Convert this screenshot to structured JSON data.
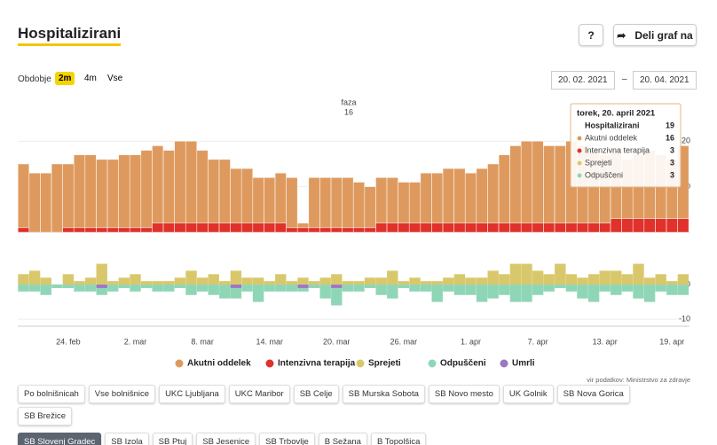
{
  "header": {
    "title": "Hospitalizirani",
    "help": "?",
    "share": "Deli graf na"
  },
  "period": {
    "label": "Obdobje",
    "options": [
      "2m",
      "4m",
      "Vse"
    ]
  },
  "date_range": {
    "from": "20. 02. 2021",
    "separator": "–",
    "to": "20. 04. 2021"
  },
  "chart_data": [
    {
      "type": "stacked-bar",
      "categories": [
        null,
        null,
        null,
        null,
        "24. feb",
        null,
        null,
        null,
        null,
        null,
        "2. mar",
        null,
        null,
        null,
        null,
        null,
        "8. mar",
        null,
        null,
        null,
        null,
        null,
        "14. mar",
        null,
        null,
        null,
        null,
        null,
        "20. mar",
        null,
        null,
        null,
        null,
        null,
        "26. mar",
        null,
        null,
        null,
        null,
        null,
        "1. apr",
        null,
        null,
        null,
        null,
        null,
        "7. apr",
        null,
        null,
        null,
        null,
        null,
        "13. apr",
        null,
        null,
        null,
        null,
        null,
        "19. apr",
        null
      ],
      "series": [
        {
          "name": "Akutni oddelek",
          "color": "#de9a5e",
          "values": [
            14,
            13,
            13,
            15,
            14,
            16,
            16,
            15,
            15,
            16,
            16,
            17,
            17,
            16,
            18,
            18,
            16,
            14,
            14,
            12,
            12,
            10,
            10,
            11,
            11,
            1,
            11,
            11,
            11,
            11,
            10,
            9,
            10,
            10,
            9,
            9,
            11,
            11,
            12,
            12,
            11,
            12,
            13,
            15,
            17,
            18,
            18,
            17,
            17,
            18,
            17,
            16,
            15,
            15,
            13,
            14,
            15,
            14,
            13,
            16
          ]
        },
        {
          "name": "Intenzivna terapija",
          "color": "#e0312b",
          "values": [
            1,
            0,
            0,
            0,
            1,
            1,
            1,
            1,
            1,
            1,
            1,
            1,
            2,
            2,
            2,
            2,
            2,
            2,
            2,
            2,
            2,
            2,
            2,
            2,
            1,
            1,
            1,
            1,
            1,
            1,
            1,
            1,
            2,
            2,
            2,
            2,
            2,
            2,
            2,
            2,
            2,
            2,
            2,
            2,
            2,
            2,
            2,
            2,
            2,
            2,
            2,
            2,
            2,
            3,
            3,
            3,
            3,
            3,
            3,
            3
          ]
        }
      ],
      "ylim": [
        0,
        30
      ],
      "yticks": [
        10,
        20
      ],
      "grid": true,
      "annotation": {
        "text": "faza",
        "phase": 16
      },
      "tooltip": {
        "title": "torek, 20. april 2021",
        "total_label": "Hospitalizirani",
        "total": 19,
        "rows": [
          {
            "label": "Akutni oddelek",
            "value": 16,
            "color": "#de9a5e"
          },
          {
            "label": "Intenzivna terapija",
            "value": 3,
            "color": "#e0312b"
          },
          {
            "label": "Sprejeti",
            "value": 3,
            "color": "#d9c86b"
          },
          {
            "label": "Odpuščeni",
            "value": 3,
            "color": "#8fd6b6"
          }
        ]
      }
    },
    {
      "type": "diverging-bar",
      "series": [
        {
          "name": "Sprejeti",
          "color": "#d9c86b",
          "values": [
            3,
            4,
            2,
            0,
            3,
            1,
            2,
            6,
            1,
            2,
            3,
            1,
            1,
            1,
            2,
            4,
            2,
            3,
            1,
            4,
            2,
            2,
            1,
            3,
            1,
            2,
            1,
            2,
            3,
            1,
            1,
            2,
            2,
            4,
            1,
            2,
            1,
            1,
            2,
            3,
            2,
            2,
            4,
            3,
            6,
            6,
            4,
            3,
            6,
            3,
            2,
            3,
            4,
            4,
            3,
            6,
            2,
            3,
            1,
            3
          ]
        },
        {
          "name": "Odpuščeni",
          "color": "#8fd6b6",
          "values": [
            -2,
            -2,
            -3,
            -1,
            -1,
            -2,
            -2,
            -2,
            -2,
            -1,
            -2,
            -1,
            -2,
            -2,
            -1,
            -3,
            -2,
            -3,
            -4,
            -3,
            -2,
            -5,
            -2,
            -2,
            -2,
            -1,
            -1,
            -4,
            -5,
            -2,
            -2,
            -1,
            -3,
            -4,
            -1,
            -2,
            -2,
            -5,
            -2,
            -3,
            -3,
            -5,
            -4,
            -3,
            -5,
            -5,
            -3,
            -2,
            -1,
            -2,
            -4,
            -5,
            -2,
            -3,
            -2,
            -4,
            -5,
            -2,
            -3,
            -3
          ]
        },
        {
          "name": "Umrli",
          "color": "#9b77c4",
          "values": [
            0,
            0,
            0,
            0,
            0,
            0,
            0,
            -1,
            0,
            0,
            0,
            0,
            0,
            0,
            0,
            0,
            0,
            0,
            0,
            -1,
            0,
            0,
            0,
            0,
            0,
            -1,
            0,
            0,
            -1,
            0,
            0,
            0,
            0,
            0,
            0,
            0,
            0,
            0,
            0,
            0,
            0,
            0,
            0,
            0,
            0,
            0,
            0,
            0,
            0,
            0,
            0,
            0,
            0,
            0,
            0,
            0,
            0,
            0,
            0,
            0
          ]
        }
      ],
      "ylim": [
        -12,
        11
      ],
      "yticks": [
        -10,
        0
      ],
      "grid": true
    }
  ],
  "source": "vir podatkov: Ministrstvo za zdravje",
  "filters": [
    "Po bolnišnicah",
    "Vse bolnišnice",
    "UKC Ljubljana",
    "UKC Maribor",
    "SB Celje",
    "SB Murska Sobota",
    "SB Novo mesto",
    "UK Golnik",
    "SB Nova Gorica",
    "SB Brežice",
    "SB Slovenj Gradec",
    "SB Izola",
    "SB Ptuj",
    "SB Jesenice",
    "SB Trbovlje",
    "B Sežana",
    "B Topolšica"
  ]
}
